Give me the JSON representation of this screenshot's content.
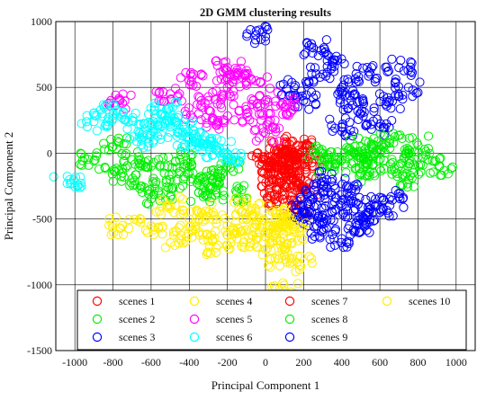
{
  "chart_data": {
    "type": "scatter",
    "title": "2D GMM clustering results",
    "xlabel": "Principal Component 1",
    "ylabel": "Principal Component 2",
    "xlim": [
      -1100,
      1100
    ],
    "ylim": [
      -1500,
      1000
    ],
    "xticks": [
      -1000,
      -800,
      -600,
      -400,
      -200,
      0,
      200,
      400,
      600,
      800,
      1000
    ],
    "yticks": [
      -1500,
      -1000,
      -500,
      0,
      500,
      1000
    ],
    "grid": true,
    "marker": "open-circle",
    "legend_position": "bottom, inside plot",
    "legend_columns": 4,
    "series": [
      {
        "name": "scenes 1",
        "color": "#ff0000",
        "points": [
          [
            80,
            40
          ],
          [
            120,
            20
          ],
          [
            60,
            -40
          ],
          [
            150,
            -60
          ],
          [
            100,
            -120
          ],
          [
            40,
            -200
          ],
          [
            180,
            -150
          ],
          [
            200,
            -250
          ],
          [
            140,
            -300
          ],
          [
            60,
            -280
          ],
          [
            20,
            -100
          ],
          [
            170,
            60
          ],
          [
            220,
            -40
          ],
          [
            90,
            -350
          ],
          [
            160,
            -420
          ]
        ]
      },
      {
        "name": "scenes 2",
        "color": "#00ee00",
        "points": [
          [
            -600,
            -100
          ],
          [
            -700,
            -50
          ],
          [
            -500,
            -200
          ],
          [
            -400,
            -150
          ],
          [
            -300,
            -250
          ],
          [
            -200,
            -100
          ],
          [
            -800,
            50
          ],
          [
            -650,
            -250
          ],
          [
            -450,
            -50
          ],
          [
            -350,
            -300
          ],
          [
            -250,
            -180
          ],
          [
            -900,
            -60
          ],
          [
            -150,
            -300
          ],
          [
            -550,
            -320
          ],
          [
            -750,
            -150
          ]
        ]
      },
      {
        "name": "scenes 3",
        "color": "#0000ff",
        "points": [
          [
            200,
            400
          ],
          [
            300,
            600
          ],
          [
            400,
            500
          ],
          [
            500,
            300
          ],
          [
            600,
            200
          ],
          [
            350,
            700
          ],
          [
            450,
            400
          ],
          [
            550,
            600
          ],
          [
            250,
            800
          ],
          [
            650,
            400
          ],
          [
            700,
            650
          ],
          [
            150,
            500
          ],
          [
            400,
            200
          ],
          [
            -50,
            900
          ],
          [
            750,
            500
          ]
        ]
      },
      {
        "name": "scenes 4",
        "color": "#ffee00",
        "points": [
          [
            -500,
            -400
          ],
          [
            -400,
            -500
          ],
          [
            -300,
            -450
          ],
          [
            -200,
            -550
          ],
          [
            -100,
            -500
          ],
          [
            0,
            -600
          ],
          [
            100,
            -550
          ],
          [
            -450,
            -650
          ],
          [
            -350,
            -600
          ],
          [
            -250,
            -700
          ],
          [
            -600,
            -550
          ],
          [
            -150,
            -650
          ],
          [
            50,
            -800
          ],
          [
            100,
            -1050
          ],
          [
            -750,
            -550
          ]
        ]
      },
      {
        "name": "scenes 5",
        "color": "#ff00ff",
        "points": [
          [
            -300,
            400
          ],
          [
            -200,
            500
          ],
          [
            -100,
            300
          ],
          [
            0,
            400
          ],
          [
            -400,
            550
          ],
          [
            -150,
            600
          ],
          [
            50,
            250
          ],
          [
            -250,
            250
          ],
          [
            -350,
            300
          ],
          [
            -50,
            550
          ],
          [
            100,
            350
          ],
          [
            -500,
            450
          ],
          [
            -200,
            650
          ],
          [
            0,
            150
          ],
          [
            -750,
            380
          ]
        ]
      },
      {
        "name": "scenes 6",
        "color": "#00ffff",
        "points": [
          [
            -500,
            200
          ],
          [
            -600,
            150
          ],
          [
            -400,
            100
          ],
          [
            -300,
            50
          ],
          [
            -700,
            250
          ],
          [
            -550,
            300
          ],
          [
            -450,
            180
          ],
          [
            -350,
            80
          ],
          [
            -250,
            20
          ],
          [
            -650,
            100
          ],
          [
            -800,
            300
          ],
          [
            -900,
            240
          ],
          [
            -1040,
            -230
          ],
          [
            -200,
            -10
          ],
          [
            -520,
            330
          ]
        ]
      },
      {
        "name": "scenes 7",
        "color": "#ff0000",
        "points": [
          [
            100,
            -100
          ],
          [
            50,
            -150
          ],
          [
            150,
            0
          ],
          [
            0,
            -50
          ],
          [
            130,
            -200
          ]
        ]
      },
      {
        "name": "scenes 8",
        "color": "#00ee00",
        "points": [
          [
            300,
            0
          ],
          [
            400,
            -50
          ],
          [
            500,
            50
          ],
          [
            600,
            0
          ],
          [
            700,
            -100
          ],
          [
            350,
            -100
          ],
          [
            450,
            20
          ],
          [
            550,
            -20
          ],
          [
            650,
            80
          ],
          [
            800,
            -30
          ],
          [
            910,
            -100
          ],
          [
            500,
            -150
          ],
          [
            750,
            -200
          ],
          [
            600,
            -120
          ],
          [
            800,
            60
          ]
        ]
      },
      {
        "name": "scenes 9",
        "color": "#0000ff",
        "points": [
          [
            300,
            -300
          ],
          [
            400,
            -400
          ],
          [
            250,
            -500
          ],
          [
            350,
            -200
          ],
          [
            450,
            -300
          ],
          [
            500,
            -500
          ],
          [
            200,
            -450
          ],
          [
            550,
            -400
          ],
          [
            600,
            -450
          ],
          [
            400,
            -650
          ],
          [
            300,
            -600
          ],
          [
            480,
            -550
          ],
          [
            350,
            -450
          ],
          [
            650,
            -350
          ],
          [
            250,
            -350
          ]
        ]
      },
      {
        "name": "scenes 10",
        "color": "#ffee00",
        "points": [
          [
            -100,
            -400
          ],
          [
            50,
            -450
          ],
          [
            150,
            -600
          ],
          [
            -50,
            -650
          ],
          [
            80,
            -700
          ],
          [
            180,
            -850
          ],
          [
            20,
            -550
          ],
          [
            120,
            -500
          ]
        ]
      }
    ]
  }
}
